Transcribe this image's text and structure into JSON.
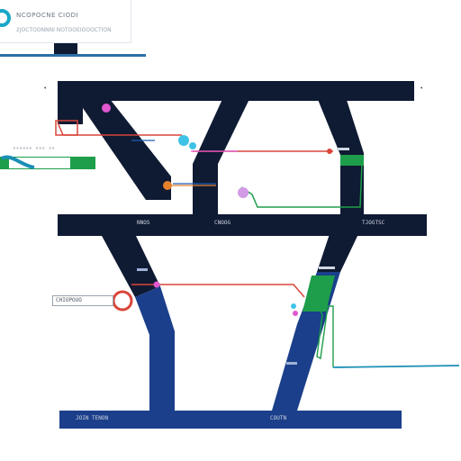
{
  "header": {
    "title": "NCOPOCNE CIODI",
    "subtitle": "2JOCTOONNNI NOTOOEIOOOCTION",
    "accent": "#1aa7c9",
    "underline_color": "#2a6fa8"
  },
  "labels": {
    "top_bar_marker": "◂",
    "top_bar_marker_right": "◂",
    "left_callout": "°°°°°° °°° °°",
    "mid_bar_left": "NNOS",
    "mid_bar_center": "CNOOG",
    "mid_bar_right": "TJOGTSC",
    "bottom_left": "JOIN TENON",
    "bottom_center": "COUTN",
    "lower_box": "CHIOPOUO"
  },
  "colors": {
    "navy": "#0f1a33",
    "blue": "#1b3f8a",
    "red_line": "#d9453a",
    "green": "#1e9e4a",
    "teal_line": "#1a8fb5",
    "pink": "#e058d0",
    "cyan_dot": "#3ec3e6",
    "orange_dot": "#e6812c"
  },
  "icons": [
    "pin-marker-icon",
    "connector-dot-icon"
  ]
}
